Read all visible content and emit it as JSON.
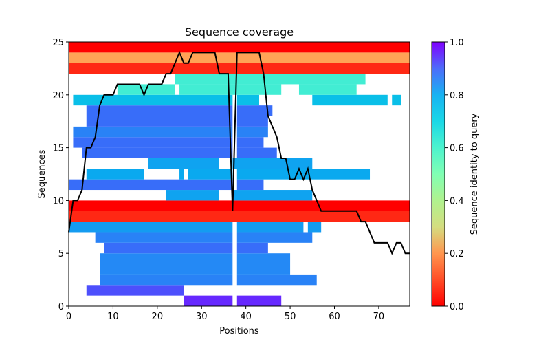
{
  "chart_data": {
    "type": "heatmap",
    "title": "Sequence coverage",
    "xlabel": "Positions",
    "ylabel": "Sequences",
    "xlim": [
      0,
      77
    ],
    "ylim": [
      0,
      25
    ],
    "xticks": [
      0,
      10,
      20,
      30,
      40,
      50,
      60,
      70
    ],
    "yticks": [
      0,
      5,
      10,
      15,
      20,
      25
    ],
    "grid": false,
    "colorbar": {
      "label": "Sequence identity to query",
      "colormap": "rainbow",
      "range": [
        0.0,
        1.0
      ],
      "ticks": [
        "0.0",
        "0.2",
        "0.4",
        "0.6",
        "0.8",
        "1.0"
      ],
      "placement": "right"
    },
    "rows": [
      {
        "seq": 0,
        "identity": 0.05,
        "segments": [
          [
            26,
            37
          ],
          [
            38,
            48
          ]
        ]
      },
      {
        "seq": 1,
        "identity": 0.1,
        "segments": [
          [
            4,
            26
          ]
        ]
      },
      {
        "seq": 2,
        "identity": 0.17,
        "segments": [
          [
            7,
            37
          ],
          [
            38,
            56
          ]
        ]
      },
      {
        "seq": 3,
        "identity": 0.18,
        "segments": [
          [
            7,
            37
          ],
          [
            38,
            50
          ]
        ]
      },
      {
        "seq": 4,
        "identity": 0.18,
        "segments": [
          [
            7,
            37
          ],
          [
            38,
            50
          ]
        ]
      },
      {
        "seq": 5,
        "identity": 0.14,
        "segments": [
          [
            8,
            37
          ],
          [
            38,
            45
          ]
        ]
      },
      {
        "seq": 6,
        "identity": 0.17,
        "segments": [
          [
            6,
            37
          ],
          [
            38,
            55
          ]
        ]
      },
      {
        "seq": 7,
        "identity": 0.21,
        "segments": [
          [
            0,
            37
          ],
          [
            38,
            53
          ],
          [
            54,
            57
          ]
        ]
      },
      {
        "seq": 8,
        "identity": 0.95,
        "segments": [
          [
            0,
            77
          ]
        ]
      },
      {
        "seq": 9,
        "identity": 1.0,
        "segments": [
          [
            0,
            77
          ]
        ]
      },
      {
        "seq": 10,
        "identity": 0.22,
        "segments": [
          [
            22,
            34
          ],
          [
            37,
            55
          ]
        ]
      },
      {
        "seq": 11,
        "identity": 0.14,
        "segments": [
          [
            0,
            37
          ],
          [
            38,
            44
          ]
        ]
      },
      {
        "seq": 12,
        "identity": 0.23,
        "segments": [
          [
            4,
            17
          ],
          [
            25,
            26
          ],
          [
            27,
            37
          ],
          [
            38,
            68
          ]
        ]
      },
      {
        "seq": 13,
        "identity": 0.22,
        "segments": [
          [
            18,
            34
          ],
          [
            37,
            55
          ]
        ]
      },
      {
        "seq": 14,
        "identity": 0.14,
        "segments": [
          [
            3,
            37
          ],
          [
            38,
            47
          ]
        ]
      },
      {
        "seq": 15,
        "identity": 0.14,
        "segments": [
          [
            1,
            37
          ],
          [
            38,
            44
          ]
        ]
      },
      {
        "seq": 16,
        "identity": 0.17,
        "segments": [
          [
            1,
            37
          ],
          [
            38,
            45
          ]
        ]
      },
      {
        "seq": 17,
        "identity": 0.14,
        "segments": [
          [
            4,
            37
          ],
          [
            38,
            45
          ]
        ]
      },
      {
        "seq": 18,
        "identity": 0.14,
        "segments": [
          [
            4,
            37
          ],
          [
            38,
            46
          ]
        ]
      },
      {
        "seq": 19,
        "identity": 0.27,
        "segments": [
          [
            1,
            37
          ],
          [
            38,
            43
          ],
          [
            55,
            72
          ],
          [
            73,
            75
          ]
        ]
      },
      {
        "seq": 20,
        "identity": 0.38,
        "segments": [
          [
            11,
            24
          ],
          [
            25,
            48
          ],
          [
            52,
            65
          ]
        ]
      },
      {
        "seq": 21,
        "identity": 0.38,
        "segments": [
          [
            24,
            67
          ]
        ]
      },
      {
        "seq": 22,
        "identity": 0.95,
        "segments": [
          [
            0,
            77
          ]
        ]
      },
      {
        "seq": 23,
        "identity": 0.78,
        "segments": [
          [
            0,
            77
          ]
        ]
      },
      {
        "seq": 24,
        "identity": 1.0,
        "segments": [
          [
            0,
            77
          ]
        ]
      }
    ],
    "series": [
      {
        "name": "coverage",
        "color": "#000000",
        "x": [
          0,
          1,
          2,
          3,
          4,
          5,
          6,
          7,
          8,
          9,
          10,
          11,
          12,
          13,
          14,
          15,
          16,
          17,
          18,
          19,
          20,
          21,
          22,
          23,
          24,
          25,
          26,
          27,
          28,
          29,
          30,
          31,
          32,
          33,
          34,
          35,
          36,
          37,
          38,
          39,
          40,
          41,
          42,
          43,
          44,
          45,
          46,
          47,
          48,
          49,
          50,
          51,
          52,
          53,
          54,
          55,
          56,
          57,
          58,
          59,
          60,
          61,
          62,
          63,
          64,
          65,
          66,
          67,
          68,
          69,
          70,
          71,
          72,
          73,
          74,
          75,
          76,
          77
        ],
        "y": [
          7,
          10,
          10,
          11,
          15,
          15,
          16,
          19,
          20,
          20,
          20,
          21,
          21,
          21,
          21,
          21,
          21,
          20,
          21,
          21,
          21,
          21,
          22,
          22,
          23,
          24,
          23,
          23,
          24,
          24,
          24,
          24,
          24,
          24,
          22,
          22,
          22,
          9,
          24,
          24,
          24,
          24,
          24,
          24,
          22,
          18,
          17,
          16,
          14,
          14,
          12,
          12,
          13,
          12,
          13,
          11,
          10,
          9,
          9,
          9,
          9,
          9,
          9,
          9,
          9,
          9,
          8,
          8,
          7,
          6,
          6,
          6,
          6,
          5,
          6,
          6,
          5,
          5
        ]
      }
    ]
  }
}
